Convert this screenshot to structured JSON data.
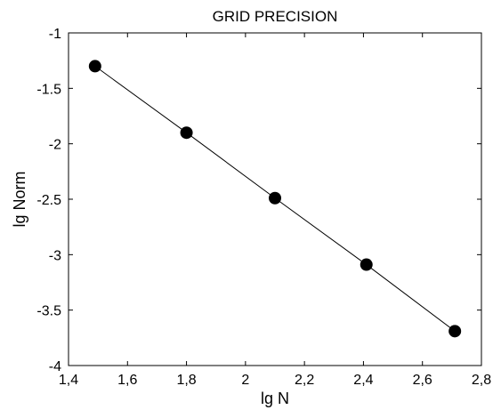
{
  "chart_data": {
    "type": "line",
    "title": "GRID PRECISION",
    "xlabel": "lg N",
    "ylabel": "lg Norm",
    "xlim": [
      1.4,
      2.8
    ],
    "ylim": [
      -4,
      -1
    ],
    "xticks": [
      1.4,
      1.6,
      1.8,
      2.0,
      2.2,
      2.4,
      2.6,
      2.8
    ],
    "xtick_labels": [
      "1,4",
      "1,6",
      "1,8",
      "2",
      "2,2",
      "2,4",
      "2,6",
      "2,8"
    ],
    "yticks": [
      -1,
      -1.5,
      -2,
      -2.5,
      -3,
      -3.5,
      -4
    ],
    "ytick_labels": [
      "-1",
      "-1.5",
      "-2",
      "-2.5",
      "-3",
      "-3.5",
      "-4"
    ],
    "grid": false,
    "series": [
      {
        "x": [
          1.49,
          1.8,
          2.1,
          2.41,
          2.71
        ],
        "y": [
          -1.3,
          -1.9,
          -2.49,
          -3.09,
          -3.69
        ],
        "marker": "circle",
        "color": "#000000"
      }
    ]
  }
}
